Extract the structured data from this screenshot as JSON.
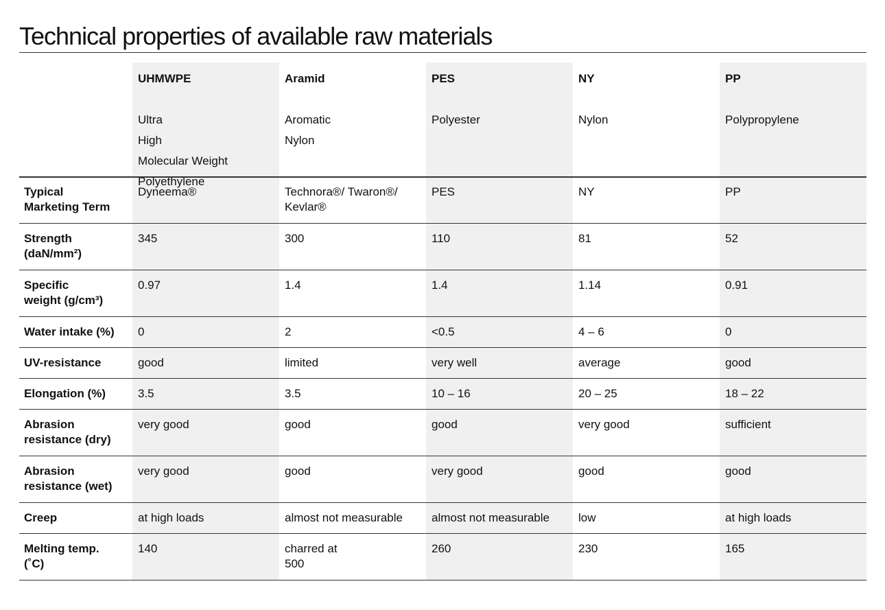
{
  "title": "Technical properties of available raw materials",
  "table": {
    "columns": [
      {
        "name": "UHMWPE",
        "description": [
          "Ultra",
          "High",
          "Molecular Weight",
          "Polyethylene"
        ]
      },
      {
        "name": "Aramid",
        "description": [
          "Aromatic",
          "Nylon"
        ]
      },
      {
        "name": "PES",
        "description": [
          "Polyester"
        ]
      },
      {
        "name": "NY",
        "description": [
          "Nylon"
        ]
      },
      {
        "name": "PP",
        "description": [
          "Polypropylene"
        ]
      }
    ],
    "rows": [
      {
        "label": [
          "Typical",
          "Marketing Term"
        ],
        "cells": [
          [
            "Dyneema®"
          ],
          [
            "Technora®/ Twaron®/",
            "Kevlar®"
          ],
          [
            "PES"
          ],
          [
            "NY"
          ],
          [
            "PP"
          ]
        ]
      },
      {
        "label": [
          "Strength",
          "(daN/mm²)"
        ],
        "cells": [
          [
            "345"
          ],
          [
            "300"
          ],
          [
            "110"
          ],
          [
            "81"
          ],
          [
            "52"
          ]
        ]
      },
      {
        "label": [
          "Specific",
          "weight (g/cm³)"
        ],
        "cells": [
          [
            "0.97"
          ],
          [
            "1.4"
          ],
          [
            "1.4"
          ],
          [
            "1.14"
          ],
          [
            "0.91"
          ]
        ]
      },
      {
        "label": [
          "Water intake (%)"
        ],
        "cells": [
          [
            "0"
          ],
          [
            "2"
          ],
          [
            "<0.5"
          ],
          [
            "4 – 6"
          ],
          [
            "0"
          ]
        ]
      },
      {
        "label": [
          "UV-resistance"
        ],
        "cells": [
          [
            "good"
          ],
          [
            "limited"
          ],
          [
            "very well"
          ],
          [
            "average"
          ],
          [
            "good"
          ]
        ]
      },
      {
        "label": [
          "Elongation (%)"
        ],
        "cells": [
          [
            "3.5"
          ],
          [
            "3.5"
          ],
          [
            "10 – 16"
          ],
          [
            "20 – 25"
          ],
          [
            "18 – 22"
          ]
        ]
      },
      {
        "label": [
          "Abrasion",
          "resistance (dry)"
        ],
        "cells": [
          [
            "very good"
          ],
          [
            "good"
          ],
          [
            "good"
          ],
          [
            "very good"
          ],
          [
            "sufficient"
          ]
        ]
      },
      {
        "label": [
          "Abrasion",
          "resistance (wet)"
        ],
        "cells": [
          [
            "very good"
          ],
          [
            "good"
          ],
          [
            "very good"
          ],
          [
            "good"
          ],
          [
            "good"
          ]
        ]
      },
      {
        "label": [
          "Creep"
        ],
        "cells": [
          [
            "at high loads"
          ],
          [
            "almost not measurable"
          ],
          [
            "almost not measurable"
          ],
          [
            "low"
          ],
          [
            "at high loads"
          ]
        ]
      },
      {
        "label": [
          "Melting temp.",
          "(˚C)"
        ],
        "cells": [
          [
            "140"
          ],
          [
            "charred at",
            "500"
          ],
          [
            "260"
          ],
          [
            "230"
          ],
          [
            "165"
          ]
        ]
      }
    ]
  }
}
